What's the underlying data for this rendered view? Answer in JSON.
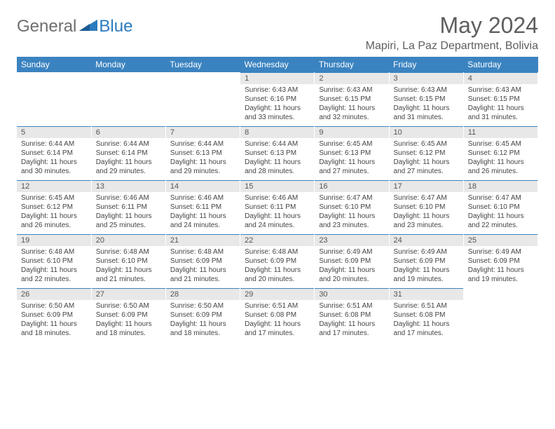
{
  "logo": {
    "general": "General",
    "blue": "Blue"
  },
  "title": "May 2024",
  "location": "Mapiri, La Paz Department, Bolivia",
  "colors": {
    "header_bg": "#3b83c0",
    "daynum_bg": "#e8e8e8",
    "text": "#444444",
    "title": "#5e5e5e"
  },
  "day_labels": [
    "Sunday",
    "Monday",
    "Tuesday",
    "Wednesday",
    "Thursday",
    "Friday",
    "Saturday"
  ],
  "weeks": [
    [
      null,
      null,
      null,
      {
        "n": "1",
        "sunrise": "6:43 AM",
        "sunset": "6:16 PM",
        "daylight": "11 hours and 33 minutes."
      },
      {
        "n": "2",
        "sunrise": "6:43 AM",
        "sunset": "6:15 PM",
        "daylight": "11 hours and 32 minutes."
      },
      {
        "n": "3",
        "sunrise": "6:43 AM",
        "sunset": "6:15 PM",
        "daylight": "11 hours and 31 minutes."
      },
      {
        "n": "4",
        "sunrise": "6:43 AM",
        "sunset": "6:15 PM",
        "daylight": "11 hours and 31 minutes."
      }
    ],
    [
      {
        "n": "5",
        "sunrise": "6:44 AM",
        "sunset": "6:14 PM",
        "daylight": "11 hours and 30 minutes."
      },
      {
        "n": "6",
        "sunrise": "6:44 AM",
        "sunset": "6:14 PM",
        "daylight": "11 hours and 29 minutes."
      },
      {
        "n": "7",
        "sunrise": "6:44 AM",
        "sunset": "6:13 PM",
        "daylight": "11 hours and 29 minutes."
      },
      {
        "n": "8",
        "sunrise": "6:44 AM",
        "sunset": "6:13 PM",
        "daylight": "11 hours and 28 minutes."
      },
      {
        "n": "9",
        "sunrise": "6:45 AM",
        "sunset": "6:13 PM",
        "daylight": "11 hours and 27 minutes."
      },
      {
        "n": "10",
        "sunrise": "6:45 AM",
        "sunset": "6:12 PM",
        "daylight": "11 hours and 27 minutes."
      },
      {
        "n": "11",
        "sunrise": "6:45 AM",
        "sunset": "6:12 PM",
        "daylight": "11 hours and 26 minutes."
      }
    ],
    [
      {
        "n": "12",
        "sunrise": "6:45 AM",
        "sunset": "6:12 PM",
        "daylight": "11 hours and 26 minutes."
      },
      {
        "n": "13",
        "sunrise": "6:46 AM",
        "sunset": "6:11 PM",
        "daylight": "11 hours and 25 minutes."
      },
      {
        "n": "14",
        "sunrise": "6:46 AM",
        "sunset": "6:11 PM",
        "daylight": "11 hours and 24 minutes."
      },
      {
        "n": "15",
        "sunrise": "6:46 AM",
        "sunset": "6:11 PM",
        "daylight": "11 hours and 24 minutes."
      },
      {
        "n": "16",
        "sunrise": "6:47 AM",
        "sunset": "6:10 PM",
        "daylight": "11 hours and 23 minutes."
      },
      {
        "n": "17",
        "sunrise": "6:47 AM",
        "sunset": "6:10 PM",
        "daylight": "11 hours and 23 minutes."
      },
      {
        "n": "18",
        "sunrise": "6:47 AM",
        "sunset": "6:10 PM",
        "daylight": "11 hours and 22 minutes."
      }
    ],
    [
      {
        "n": "19",
        "sunrise": "6:48 AM",
        "sunset": "6:10 PM",
        "daylight": "11 hours and 22 minutes."
      },
      {
        "n": "20",
        "sunrise": "6:48 AM",
        "sunset": "6:10 PM",
        "daylight": "11 hours and 21 minutes."
      },
      {
        "n": "21",
        "sunrise": "6:48 AM",
        "sunset": "6:09 PM",
        "daylight": "11 hours and 21 minutes."
      },
      {
        "n": "22",
        "sunrise": "6:48 AM",
        "sunset": "6:09 PM",
        "daylight": "11 hours and 20 minutes."
      },
      {
        "n": "23",
        "sunrise": "6:49 AM",
        "sunset": "6:09 PM",
        "daylight": "11 hours and 20 minutes."
      },
      {
        "n": "24",
        "sunrise": "6:49 AM",
        "sunset": "6:09 PM",
        "daylight": "11 hours and 19 minutes."
      },
      {
        "n": "25",
        "sunrise": "6:49 AM",
        "sunset": "6:09 PM",
        "daylight": "11 hours and 19 minutes."
      }
    ],
    [
      {
        "n": "26",
        "sunrise": "6:50 AM",
        "sunset": "6:09 PM",
        "daylight": "11 hours and 18 minutes."
      },
      {
        "n": "27",
        "sunrise": "6:50 AM",
        "sunset": "6:09 PM",
        "daylight": "11 hours and 18 minutes."
      },
      {
        "n": "28",
        "sunrise": "6:50 AM",
        "sunset": "6:09 PM",
        "daylight": "11 hours and 18 minutes."
      },
      {
        "n": "29",
        "sunrise": "6:51 AM",
        "sunset": "6:08 PM",
        "daylight": "11 hours and 17 minutes."
      },
      {
        "n": "30",
        "sunrise": "6:51 AM",
        "sunset": "6:08 PM",
        "daylight": "11 hours and 17 minutes."
      },
      {
        "n": "31",
        "sunrise": "6:51 AM",
        "sunset": "6:08 PM",
        "daylight": "11 hours and 17 minutes."
      },
      null
    ]
  ],
  "labels": {
    "sunrise": "Sunrise:",
    "sunset": "Sunset:",
    "daylight": "Daylight:"
  }
}
